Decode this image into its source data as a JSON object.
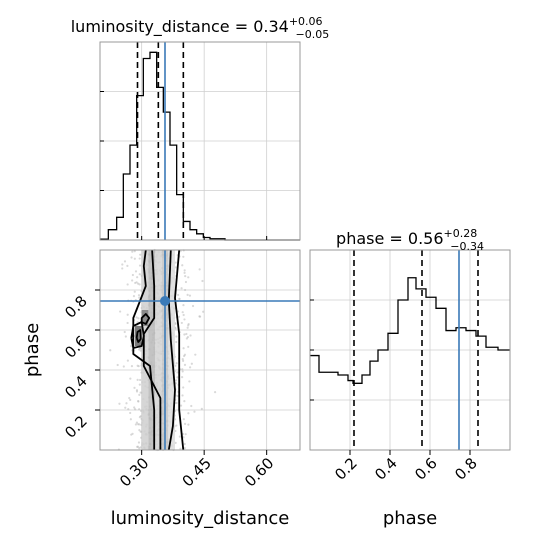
{
  "chart_data": [
    {
      "type": "histogram",
      "panel": "luminosity_distance-marginal",
      "title": {
        "param": "luminosity_distance",
        "median": "0.34",
        "plus": "+0.06",
        "minus": "−0.05"
      },
      "x_range": [
        0.2,
        0.68
      ],
      "grid": true,
      "bins": [
        {
          "x0": 0.2,
          "x1": 0.22,
          "count": 0.2
        },
        {
          "x0": 0.22,
          "x1": 0.24,
          "count": 2.5
        },
        {
          "x0": 0.24,
          "x1": 0.256,
          "count": 5.5
        },
        {
          "x0": 0.256,
          "x1": 0.272,
          "count": 16
        },
        {
          "x0": 0.272,
          "x1": 0.288,
          "count": 23
        },
        {
          "x0": 0.288,
          "x1": 0.304,
          "count": 35
        },
        {
          "x0": 0.304,
          "x1": 0.32,
          "count": 44
        },
        {
          "x0": 0.32,
          "x1": 0.336,
          "count": 45.5
        },
        {
          "x0": 0.336,
          "x1": 0.352,
          "count": 37
        },
        {
          "x0": 0.352,
          "x1": 0.368,
          "count": 31
        },
        {
          "x0": 0.368,
          "x1": 0.384,
          "count": 23
        },
        {
          "x0": 0.384,
          "x1": 0.4,
          "count": 11
        },
        {
          "x0": 0.4,
          "x1": 0.416,
          "count": 4.5
        },
        {
          "x0": 0.416,
          "x1": 0.432,
          "count": 2.5
        },
        {
          "x0": 0.432,
          "x1": 0.448,
          "count": 1.5
        },
        {
          "x0": 0.448,
          "x1": 0.464,
          "count": 0.6
        },
        {
          "x0": 0.464,
          "x1": 0.5,
          "count": 0.3
        },
        {
          "x0": 0.5,
          "x1": 0.68,
          "count": 0
        }
      ],
      "quantiles": [
        0.29,
        0.34,
        0.4
      ],
      "truth": 0.356
    },
    {
      "type": "histogram",
      "panel": "phase-marginal",
      "title": {
        "param": "phase",
        "median": "0.56",
        "plus": "+0.28",
        "minus": "−0.34"
      },
      "x_range": [
        0.0,
        1.0
      ],
      "grid": true,
      "bins": [
        {
          "x0": 0.0,
          "x1": 0.045,
          "count": 34
        },
        {
          "x0": 0.045,
          "x1": 0.14,
          "count": 28
        },
        {
          "x0": 0.14,
          "x1": 0.19,
          "count": 27
        },
        {
          "x0": 0.19,
          "x1": 0.215,
          "count": 25
        },
        {
          "x0": 0.215,
          "x1": 0.26,
          "count": 24
        },
        {
          "x0": 0.26,
          "x1": 0.3,
          "count": 27
        },
        {
          "x0": 0.3,
          "x1": 0.34,
          "count": 32
        },
        {
          "x0": 0.34,
          "x1": 0.39,
          "count": 36
        },
        {
          "x0": 0.39,
          "x1": 0.44,
          "count": 42
        },
        {
          "x0": 0.44,
          "x1": 0.49,
          "count": 54
        },
        {
          "x0": 0.49,
          "x1": 0.53,
          "count": 62
        },
        {
          "x0": 0.53,
          "x1": 0.58,
          "count": 58
        },
        {
          "x0": 0.58,
          "x1": 0.63,
          "count": 55
        },
        {
          "x0": 0.63,
          "x1": 0.68,
          "count": 51
        },
        {
          "x0": 0.68,
          "x1": 0.73,
          "count": 43
        },
        {
          "x0": 0.73,
          "x1": 0.78,
          "count": 44
        },
        {
          "x0": 0.78,
          "x1": 0.83,
          "count": 43
        },
        {
          "x0": 0.83,
          "x1": 0.88,
          "count": 41
        },
        {
          "x0": 0.88,
          "x1": 0.94,
          "count": 37
        },
        {
          "x0": 0.94,
          "x1": 1.0,
          "count": 36
        }
      ],
      "quantiles": [
        0.22,
        0.56,
        0.84
      ],
      "truth": 0.745
    },
    {
      "type": "scatter",
      "panel": "joint-luminosity_distance-phase",
      "xlabel": "luminosity_distance",
      "ylabel": "phase",
      "x_range": [
        0.2,
        0.68
      ],
      "y_range": [
        0.0,
        1.0
      ],
      "x_ticks": [
        "0.30",
        "0.45",
        "0.60"
      ],
      "x_tick_values": [
        0.3,
        0.45,
        0.6
      ],
      "y_ticks": [
        "0.2",
        "0.4",
        "0.6",
        "0.8"
      ],
      "y_tick_values": [
        0.2,
        0.4,
        0.6,
        0.8
      ],
      "truth": {
        "x": 0.356,
        "y": 0.745
      },
      "density_columns": [
        {
          "x0": 0.3,
          "x1": 0.316,
          "shade": "#cfcfcf"
        },
        {
          "x0": 0.316,
          "x1": 0.332,
          "shade": "#b8b8b8"
        },
        {
          "x0": 0.332,
          "x1": 0.348,
          "shade": "#d4d4d4"
        },
        {
          "x0": 0.348,
          "x1": 0.364,
          "shade": "#c4c4c4"
        },
        {
          "x0": 0.364,
          "x1": 0.38,
          "shade": "#dcdcdc"
        }
      ],
      "contours": [
        [
          [
            0.33,
            0.0
          ],
          [
            0.33,
            0.2
          ],
          [
            0.32,
            0.42
          ],
          [
            0.28,
            0.48
          ],
          [
            0.28,
            0.66
          ],
          [
            0.295,
            0.74
          ],
          [
            0.31,
            0.82
          ],
          [
            0.305,
            0.92
          ],
          [
            0.31,
            1.0
          ]
        ],
        [
          [
            0.4,
            0.0
          ],
          [
            0.39,
            0.2
          ],
          [
            0.39,
            0.4
          ],
          [
            0.39,
            0.58
          ],
          [
            0.38,
            0.76
          ],
          [
            0.385,
            0.88
          ],
          [
            0.39,
            1.0
          ]
        ],
        [
          [
            0.345,
            0.0
          ],
          [
            0.345,
            0.15
          ],
          [
            0.345,
            0.26
          ],
          [
            0.305,
            0.42
          ],
          [
            0.305,
            0.58
          ],
          [
            0.33,
            0.66
          ],
          [
            0.33,
            0.82
          ],
          [
            0.325,
            1.0
          ]
        ],
        [
          [
            0.365,
            0.0
          ],
          [
            0.375,
            0.12
          ],
          [
            0.38,
            0.3
          ],
          [
            0.37,
            0.55
          ],
          [
            0.365,
            0.75
          ],
          [
            0.37,
            1.0
          ]
        ],
        [
          [
            0.275,
            0.56
          ],
          [
            0.28,
            0.51
          ],
          [
            0.3,
            0.52
          ],
          [
            0.305,
            0.57
          ],
          [
            0.3,
            0.64
          ],
          [
            0.28,
            0.62
          ],
          [
            0.275,
            0.56
          ]
        ],
        [
          [
            0.288,
            0.56
          ],
          [
            0.292,
            0.54
          ],
          [
            0.298,
            0.555
          ],
          [
            0.297,
            0.6
          ],
          [
            0.29,
            0.59
          ],
          [
            0.288,
            0.56
          ]
        ],
        [
          [
            0.3,
            0.64
          ],
          [
            0.31,
            0.63
          ],
          [
            0.318,
            0.66
          ],
          [
            0.31,
            0.68
          ],
          [
            0.3,
            0.66
          ],
          [
            0.3,
            0.64
          ]
        ]
      ]
    },
    {
      "type": "axis",
      "panel": "phase-marginal-axis",
      "xlabel": "phase",
      "x_ticks": [
        "0.2",
        "0.4",
        "0.6",
        "0.8"
      ],
      "x_tick_values": [
        0.2,
        0.4,
        0.6,
        0.8
      ]
    }
  ]
}
